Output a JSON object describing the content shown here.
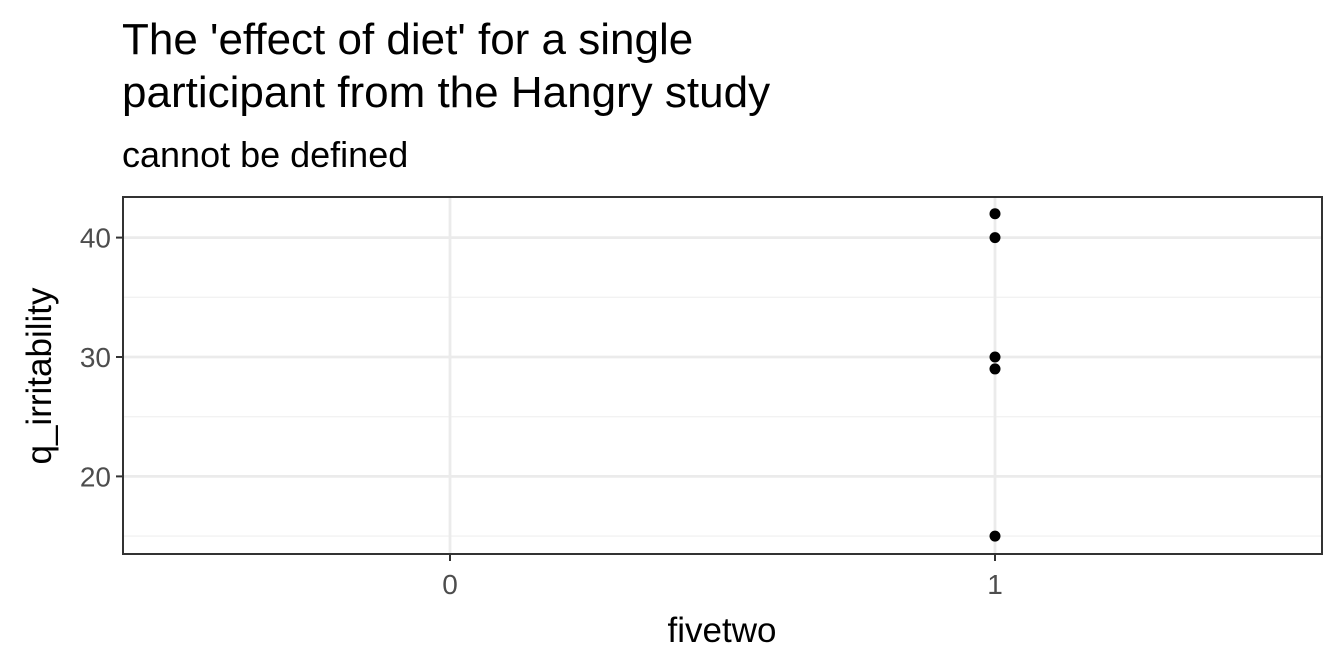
{
  "chart_data": {
    "type": "scatter",
    "title_lines": [
      "The 'effect of diet' for a single",
      "participant from the Hangry study"
    ],
    "subtitle": "cannot be defined",
    "xlabel": "fivetwo",
    "ylabel": "q_irritability",
    "x_ticks": [
      "0",
      "1"
    ],
    "y_ticks": [
      20,
      30,
      40
    ],
    "xlim": [
      -0.6,
      1.6
    ],
    "ylim": [
      13.5,
      43.4
    ],
    "grid": true,
    "legend": "none",
    "points": [
      {
        "x": 1,
        "y": 42
      },
      {
        "x": 1,
        "y": 40
      },
      {
        "x": 1,
        "y": 30
      },
      {
        "x": 1,
        "y": 29
      },
      {
        "x": 1,
        "y": 15
      }
    ],
    "colors": {
      "point": "#000000",
      "grid_major": "#ebebeb",
      "grid_minor": "#f2f2f2",
      "panel_border": "#333333",
      "tick_text": "#4d4d4d"
    }
  }
}
